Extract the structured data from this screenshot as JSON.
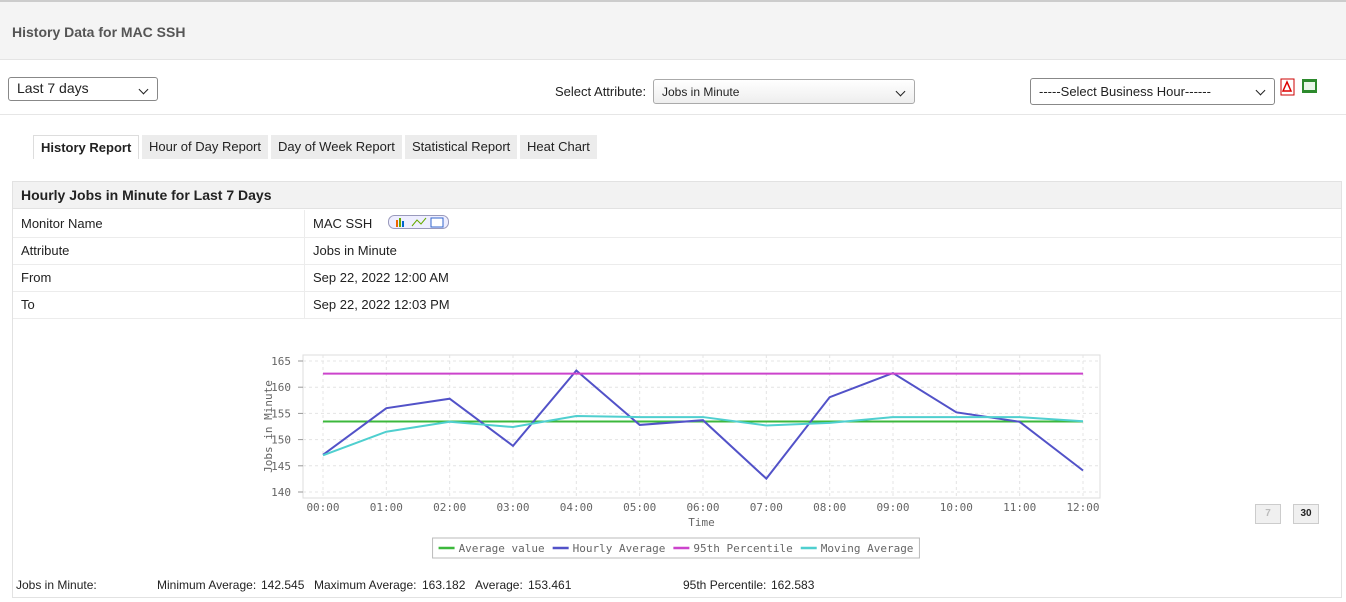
{
  "header": {
    "title": "History Data for MAC SSH"
  },
  "toolbar": {
    "period": "Last 7 days",
    "attribute_label": "Select Attribute:",
    "attribute": "Jobs in Minute",
    "business_hour": "-----Select Business Hour------"
  },
  "tabs": [
    "History Report",
    "Hour of Day Report",
    "Day of Week Report",
    "Statistical Report",
    "Heat Chart"
  ],
  "report": {
    "title": "Hourly Jobs in Minute for Last 7 Days",
    "rows": [
      [
        "Monitor Name",
        "MAC SSH"
      ],
      [
        "Attribute",
        "Jobs in Minute"
      ],
      [
        "From",
        "Sep 22, 2022 12:00 AM"
      ],
      [
        "To",
        "Sep 22, 2022 12:03 PM"
      ]
    ],
    "pager": [
      "7",
      "30"
    ]
  },
  "chart_data": {
    "type": "line",
    "x_label": "Time",
    "y_label": "Jobs in Minute",
    "categories": [
      "00:00",
      "01:00",
      "02:00",
      "03:00",
      "04:00",
      "05:00",
      "06:00",
      "07:00",
      "08:00",
      "09:00",
      "10:00",
      "11:00",
      "12:00"
    ],
    "ylim": [
      140,
      165
    ],
    "yticks": [
      140,
      145,
      150,
      155,
      160,
      165
    ],
    "grid": true,
    "series": [
      {
        "name": "Average value",
        "color": "#3cb83c",
        "values": [
          153.461,
          153.461,
          153.461,
          153.461,
          153.461,
          153.461,
          153.461,
          153.461,
          153.461,
          153.461,
          153.461,
          153.461,
          153.461
        ]
      },
      {
        "name": "Hourly Average",
        "color": "#5252c8",
        "values": [
          147.1,
          156.0,
          157.8,
          148.8,
          163.182,
          152.8,
          153.7,
          142.545,
          158.1,
          162.7,
          155.2,
          153.4,
          144.1
        ]
      },
      {
        "name": "95th Percentile",
        "color": "#cc44cc",
        "values": [
          162.583,
          162.583,
          162.583,
          162.583,
          162.583,
          162.583,
          162.583,
          162.583,
          162.583,
          162.583,
          162.583,
          162.583,
          162.583
        ]
      },
      {
        "name": "Moving Average",
        "color": "#4fcfcf",
        "values": [
          147.0,
          151.5,
          153.4,
          152.4,
          154.5,
          154.3,
          154.3,
          152.7,
          153.2,
          154.3,
          154.3,
          154.3,
          153.5
        ]
      }
    ]
  },
  "stats": {
    "label": "Jobs in Minute:",
    "items": [
      {
        "label": "Minimum Average:",
        "value": 142.545
      },
      {
        "label": "Maximum Average:",
        "value": 163.182
      },
      {
        "label": "Average:",
        "value": 153.461
      },
      {
        "label": "95th Percentile:",
        "value": 162.583
      }
    ]
  }
}
